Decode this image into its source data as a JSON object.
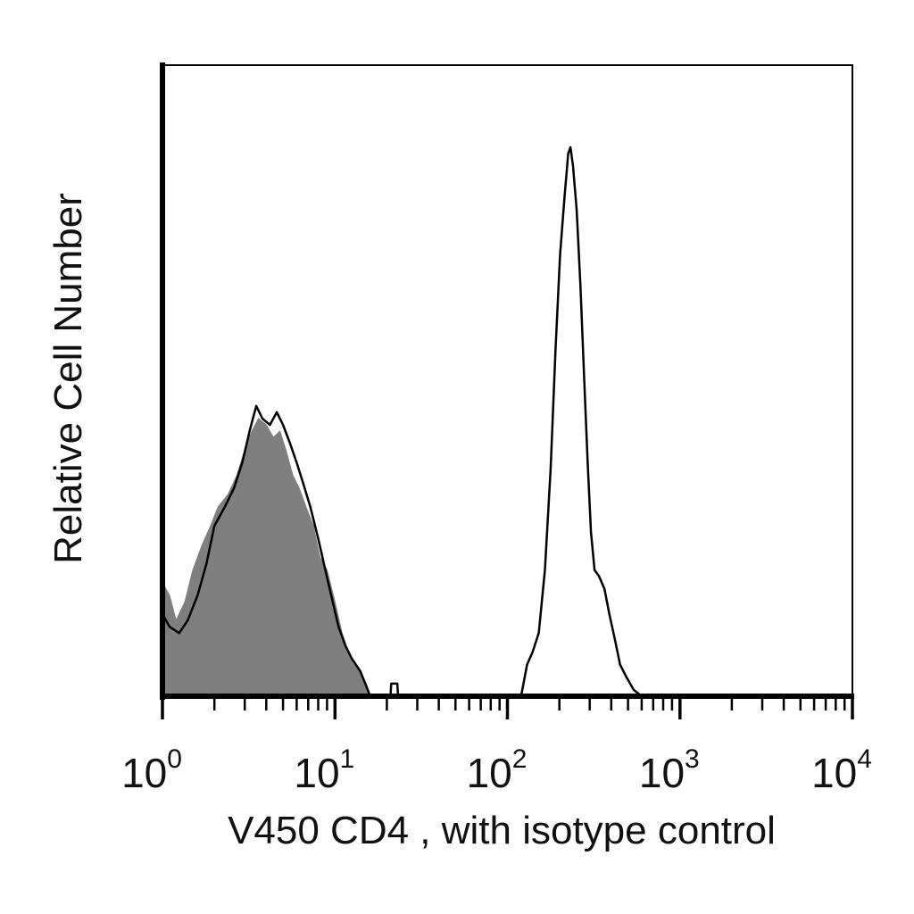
{
  "chart_data": {
    "type": "area",
    "xlabel": "V450 CD4 , with isotype control",
    "ylabel": "Relative Cell Number",
    "x_scale": "log",
    "xlim": [
      1,
      10000
    ],
    "ylim": [
      0,
      1
    ],
    "grid": false,
    "tick_labels": [
      {
        "value": 1,
        "base": "10",
        "exp": "0"
      },
      {
        "value": 10,
        "base": "10",
        "exp": "1"
      },
      {
        "value": 100,
        "base": "10",
        "exp": "2"
      },
      {
        "value": 1000,
        "base": "10",
        "exp": "3"
      },
      {
        "value": 10000,
        "base": "10",
        "exp": "4"
      }
    ],
    "series": [
      {
        "style": "filled",
        "color": "#7f7f7f",
        "points": [
          [
            1.0,
            0.18
          ],
          [
            1.1,
            0.16
          ],
          [
            1.2,
            0.12
          ],
          [
            1.35,
            0.15
          ],
          [
            1.5,
            0.2
          ],
          [
            1.7,
            0.24
          ],
          [
            1.9,
            0.27
          ],
          [
            2.1,
            0.3
          ],
          [
            2.4,
            0.32
          ],
          [
            2.7,
            0.35
          ],
          [
            3.0,
            0.39
          ],
          [
            3.3,
            0.42
          ],
          [
            3.6,
            0.44
          ],
          [
            4.0,
            0.43
          ],
          [
            4.4,
            0.41
          ],
          [
            4.8,
            0.42
          ],
          [
            5.2,
            0.39
          ],
          [
            5.7,
            0.35
          ],
          [
            6.2,
            0.33
          ],
          [
            6.8,
            0.3
          ],
          [
            7.5,
            0.27
          ],
          [
            8.2,
            0.22
          ],
          [
            9.0,
            0.2
          ],
          [
            10.0,
            0.15
          ],
          [
            11.0,
            0.1
          ],
          [
            12.0,
            0.07
          ],
          [
            13.0,
            0.05
          ],
          [
            14.5,
            0.03
          ],
          [
            16.0,
            0.0
          ]
        ]
      },
      {
        "style": "outline",
        "color": "#000000",
        "points": [
          [
            1.0,
            0.13
          ],
          [
            1.1,
            0.11
          ],
          [
            1.25,
            0.1
          ],
          [
            1.4,
            0.12
          ],
          [
            1.6,
            0.16
          ],
          [
            1.8,
            0.21
          ],
          [
            2.0,
            0.27
          ],
          [
            2.3,
            0.3
          ],
          [
            2.6,
            0.33
          ],
          [
            2.9,
            0.37
          ],
          [
            3.2,
            0.42
          ],
          [
            3.5,
            0.46
          ],
          [
            3.8,
            0.44
          ],
          [
            4.2,
            0.43
          ],
          [
            4.6,
            0.45
          ],
          [
            5.0,
            0.43
          ],
          [
            5.5,
            0.4
          ],
          [
            6.0,
            0.37
          ],
          [
            6.5,
            0.34
          ],
          [
            7.2,
            0.3
          ],
          [
            8.0,
            0.25
          ],
          [
            8.8,
            0.2
          ],
          [
            9.7,
            0.15
          ],
          [
            10.5,
            0.11
          ],
          [
            11.5,
            0.08
          ],
          [
            12.5,
            0.06
          ],
          [
            14.0,
            0.04
          ],
          [
            15.0,
            0.02
          ],
          [
            16.0,
            0.0
          ],
          [
            21.0,
            0.0
          ],
          [
            21.2,
            0.02
          ],
          [
            23.0,
            0.02
          ],
          [
            23.2,
            0.0
          ],
          [
            120.0,
            0.0
          ],
          [
            130.0,
            0.05
          ],
          [
            140.0,
            0.07
          ],
          [
            152.0,
            0.1
          ],
          [
            165.0,
            0.2
          ],
          [
            178.0,
            0.36
          ],
          [
            190.0,
            0.55
          ],
          [
            202.0,
            0.7
          ],
          [
            214.0,
            0.79
          ],
          [
            225.0,
            0.86
          ],
          [
            232.0,
            0.87
          ],
          [
            240.0,
            0.84
          ],
          [
            252.0,
            0.77
          ],
          [
            265.0,
            0.65
          ],
          [
            278.0,
            0.51
          ],
          [
            292.0,
            0.37
          ],
          [
            305.0,
            0.26
          ],
          [
            320.0,
            0.2
          ],
          [
            340.0,
            0.19
          ],
          [
            365.0,
            0.17
          ],
          [
            390.0,
            0.13
          ],
          [
            420.0,
            0.09
          ],
          [
            450.0,
            0.05
          ],
          [
            490.0,
            0.03
          ],
          [
            540.0,
            0.01
          ],
          [
            600.0,
            0.0
          ]
        ]
      }
    ]
  }
}
